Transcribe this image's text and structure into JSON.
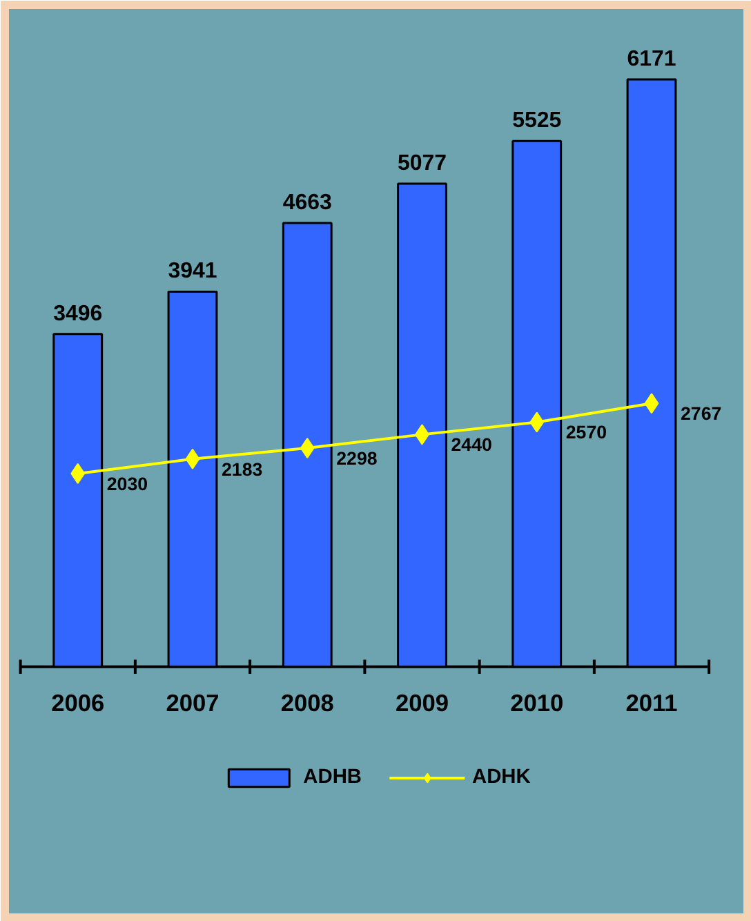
{
  "chart_data": {
    "type": "bar",
    "categories": [
      "2006",
      "2007",
      "2008",
      "2009",
      "2010",
      "2011"
    ],
    "series": [
      {
        "name": "ADHB",
        "color": "#3366ff",
        "values": [
          3496,
          3941,
          4663,
          5077,
          5525,
          6171
        ]
      },
      {
        "name": "ADHK",
        "type": "line",
        "color": "#ffff00",
        "marker": "diamond",
        "values": [
          2030,
          2183,
          2298,
          2440,
          2570,
          2767
        ]
      }
    ],
    "data_labels": true,
    "legend": "bottom",
    "tick_labels": "x"
  }
}
